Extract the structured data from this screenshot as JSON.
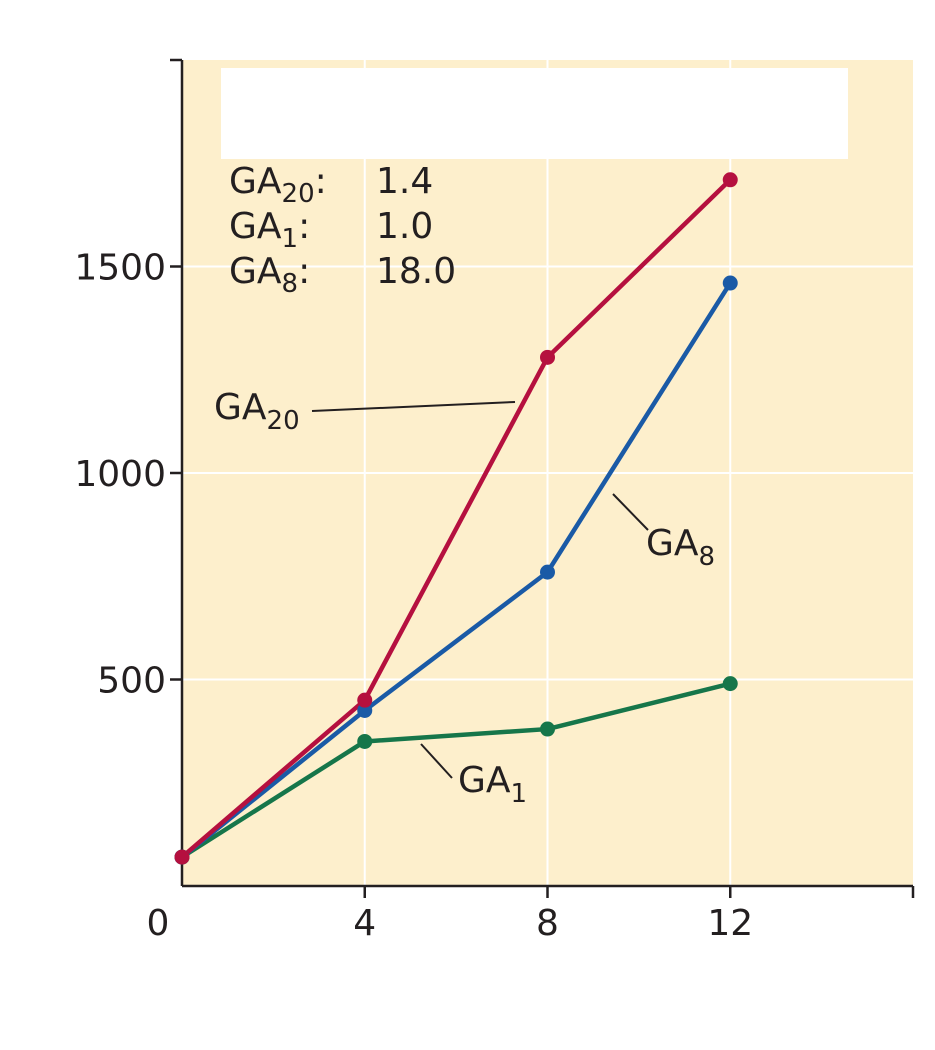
{
  "colors": {
    "plot_background": "#fdefcc",
    "gridline": "#ffffff",
    "axis": "#231f20",
    "text": "#231f20",
    "GA20": "#b5103f",
    "GA8": "#1a5aa6",
    "GA1": "#16764a"
  },
  "chart_data": {
    "type": "line",
    "x": [
      0,
      4,
      8,
      12
    ],
    "xlim": [
      0,
      16
    ],
    "ylim": [
      0,
      2000
    ],
    "xticks": [
      "0",
      "4",
      "8",
      "12"
    ],
    "yticks": [
      "500",
      "1000",
      "1500"
    ],
    "xtick_values": [
      0,
      4,
      8,
      12
    ],
    "ytick_values": [
      500,
      1000,
      1500
    ],
    "grid": true,
    "series": [
      {
        "name": "GA20",
        "base": "GA",
        "sub": "20",
        "color": "#b5103f",
        "values": [
          70,
          450,
          1280,
          1710
        ]
      },
      {
        "name": "GA8",
        "base": "GA",
        "sub": "8",
        "color": "#1a5aa6",
        "values": [
          70,
          425,
          760,
          1460
        ]
      },
      {
        "name": "GA1",
        "base": "GA",
        "sub": "1",
        "color": "#16764a",
        "values": [
          70,
          350,
          380,
          490
        ]
      }
    ],
    "annotations": [
      {
        "base": "GA",
        "sub": "20",
        "sep": ":",
        "value": "1.4"
      },
      {
        "base": "GA",
        "sub": "1",
        "sep": ":",
        "value": "1.0"
      },
      {
        "base": "GA",
        "sub": "8",
        "sep": ":",
        "value": "18.0"
      }
    ]
  }
}
